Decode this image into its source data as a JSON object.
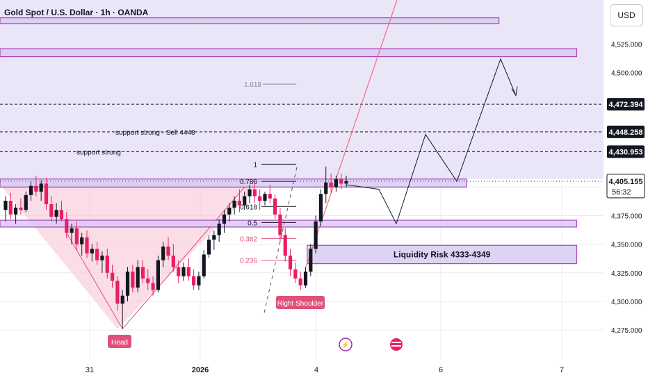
{
  "header": {
    "title": "Gold Spot / U.S. Dollar · 1h · OANDA"
  },
  "currency_button": "USD",
  "colors": {
    "background_tint": "#e4dcf5",
    "zone_fill": "#d9ccf3",
    "zone_border": "#9c27b0",
    "bull": "#131722",
    "bear": "#e91e63",
    "fib_red": "#e0507a",
    "fib_gray": "#7a7a8c",
    "trend_red": "#ef6f7a",
    "head_shoulder_fill": "#f7c6d6",
    "label_pink": "#e0507a"
  },
  "chart_data": {
    "type": "candlestick",
    "symbol": "Gold Spot / U.S. Dollar",
    "timeframe": "1h",
    "broker": "OANDA",
    "y_ticks": [
      "4,525.000",
      "4,500.000",
      "4,375.000",
      "4,350.000",
      "4,325.000",
      "4,300.000",
      "4,275.000"
    ],
    "ylim": [
      4260,
      4555
    ],
    "x_ticks": [
      "31",
      "2026",
      "4",
      "6",
      "7"
    ],
    "price_labels": [
      {
        "text": "4,472.394",
        "value": 4472.394
      },
      {
        "text": "4,448.258",
        "value": 4448.258
      },
      {
        "text": "4,430.953",
        "value": 4430.953
      }
    ],
    "current_price": {
      "text": "4,405.155",
      "value": 4405.155,
      "countdown": "56:32"
    },
    "candles": [
      [
        4380,
        4392,
        4370,
        4388
      ],
      [
        4388,
        4395,
        4372,
        4376
      ],
      [
        4376,
        4385,
        4368,
        4382
      ],
      [
        4382,
        4390,
        4376,
        4380
      ],
      [
        4380,
        4396,
        4378,
        4393
      ],
      [
        4393,
        4405,
        4388,
        4401
      ],
      [
        4401,
        4410,
        4392,
        4396
      ],
      [
        4396,
        4406,
        4388,
        4403
      ],
      [
        4403,
        4408,
        4380,
        4385
      ],
      [
        4385,
        4392,
        4370,
        4374
      ],
      [
        4374,
        4386,
        4368,
        4380
      ],
      [
        4380,
        4388,
        4370,
        4372
      ],
      [
        4372,
        4378,
        4355,
        4360
      ],
      [
        4360,
        4368,
        4350,
        4364
      ],
      [
        4364,
        4370,
        4345,
        4350
      ],
      [
        4350,
        4360,
        4340,
        4356
      ],
      [
        4356,
        4362,
        4338,
        4342
      ],
      [
        4342,
        4350,
        4335,
        4346
      ],
      [
        4346,
        4352,
        4332,
        4336
      ],
      [
        4336,
        4344,
        4325,
        4340
      ],
      [
        4340,
        4346,
        4320,
        4325
      ],
      [
        4325,
        4332,
        4312,
        4318
      ],
      [
        4318,
        4322,
        4292,
        4298
      ],
      [
        4298,
        4310,
        4276,
        4305
      ],
      [
        4305,
        4330,
        4300,
        4326
      ],
      [
        4326,
        4332,
        4308,
        4312
      ],
      [
        4312,
        4336,
        4308,
        4330
      ],
      [
        4330,
        4336,
        4316,
        4320
      ],
      [
        4320,
        4328,
        4310,
        4316
      ],
      [
        4316,
        4322,
        4305,
        4310
      ],
      [
        4310,
        4340,
        4308,
        4336
      ],
      [
        4336,
        4352,
        4330,
        4348
      ],
      [
        4348,
        4356,
        4336,
        4340
      ],
      [
        4340,
        4350,
        4326,
        4330
      ],
      [
        4330,
        4336,
        4316,
        4322
      ],
      [
        4322,
        4334,
        4318,
        4330
      ],
      [
        4330,
        4338,
        4318,
        4322
      ],
      [
        4322,
        4328,
        4310,
        4314
      ],
      [
        4314,
        4326,
        4310,
        4322
      ],
      [
        4322,
        4345,
        4320,
        4341
      ],
      [
        4341,
        4358,
        4338,
        4354
      ],
      [
        4354,
        4362,
        4345,
        4358
      ],
      [
        4358,
        4372,
        4352,
        4368
      ],
      [
        4368,
        4380,
        4360,
        4376
      ],
      [
        4376,
        4386,
        4370,
        4382
      ],
      [
        4382,
        4392,
        4376,
        4388
      ],
      [
        4388,
        4398,
        4378,
        4384
      ],
      [
        4384,
        4396,
        4380,
        4392
      ],
      [
        4392,
        4402,
        4386,
        4398
      ],
      [
        4398,
        4404,
        4386,
        4392
      ],
      [
        4392,
        4398,
        4380,
        4388
      ],
      [
        4388,
        4396,
        4384,
        4394
      ],
      [
        4394,
        4402,
        4386,
        4390
      ],
      [
        4390,
        4394,
        4372,
        4376
      ],
      [
        4376,
        4382,
        4352,
        4358
      ],
      [
        4358,
        4364,
        4335,
        4340
      ],
      [
        4340,
        4346,
        4322,
        4328
      ],
      [
        4328,
        4334,
        4316,
        4320
      ],
      [
        4320,
        4326,
        4310,
        4314
      ],
      [
        4314,
        4330,
        4312,
        4326
      ],
      [
        4326,
        4350,
        4322,
        4346
      ],
      [
        4346,
        4375,
        4342,
        4370
      ],
      [
        4370,
        4398,
        4366,
        4394
      ],
      [
        4394,
        4418,
        4386,
        4404
      ],
      [
        4404,
        4412,
        4395,
        4400
      ],
      [
        4400,
        4410,
        4396,
        4407
      ],
      [
        4407,
        4412,
        4398,
        4403
      ],
      [
        4403,
        4410,
        4400,
        4405.155
      ]
    ],
    "zones": [
      {
        "low": 4543,
        "high": 4548,
        "end_x_frac": 0.77
      },
      {
        "low": 4514,
        "high": 4521,
        "end_x_frac": 0.89
      },
      {
        "low": 4400,
        "high": 4407,
        "end_x_frac": 0.72
      },
      {
        "low": 4365,
        "high": 4371,
        "end_x_frac": 0.89
      },
      {
        "low": 4333,
        "high": 4349,
        "start_x_frac": 0.474,
        "end_x_frac": 0.89,
        "label": "Liquidity Risk 4333-4349"
      }
    ],
    "horizontal_lines": [
      {
        "value": 4472.394,
        "style": "dashed"
      },
      {
        "value": 4448.258,
        "style": "dashed",
        "label": "support strong - Sell 4448"
      },
      {
        "value": 4430.953,
        "style": "dashed",
        "label": "support strong"
      },
      {
        "value": 4405.155,
        "style": "dotted"
      }
    ],
    "fibonacci": [
      {
        "level": "1.618",
        "value": 4490
      },
      {
        "level": "1",
        "value": 4420
      },
      {
        "level": "0.786",
        "value": 4405
      },
      {
        "level": "0.618",
        "value": 4383
      },
      {
        "level": "0.5",
        "value": 4369
      },
      {
        "level": "0.382",
        "value": 4355
      },
      {
        "level": "0.236",
        "value": 4336
      }
    ],
    "annotations": [
      {
        "text": "Head"
      },
      {
        "text": "Right Shoulder"
      }
    ],
    "projection_path": [
      [
        4400,
        4398
      ],
      [
        4420,
        4368
      ],
      [
        4440,
        4446
      ],
      [
        4460,
        4405
      ],
      [
        4480,
        4512
      ],
      [
        4500,
        4482
      ]
    ],
    "grid": true,
    "legend": "none"
  }
}
